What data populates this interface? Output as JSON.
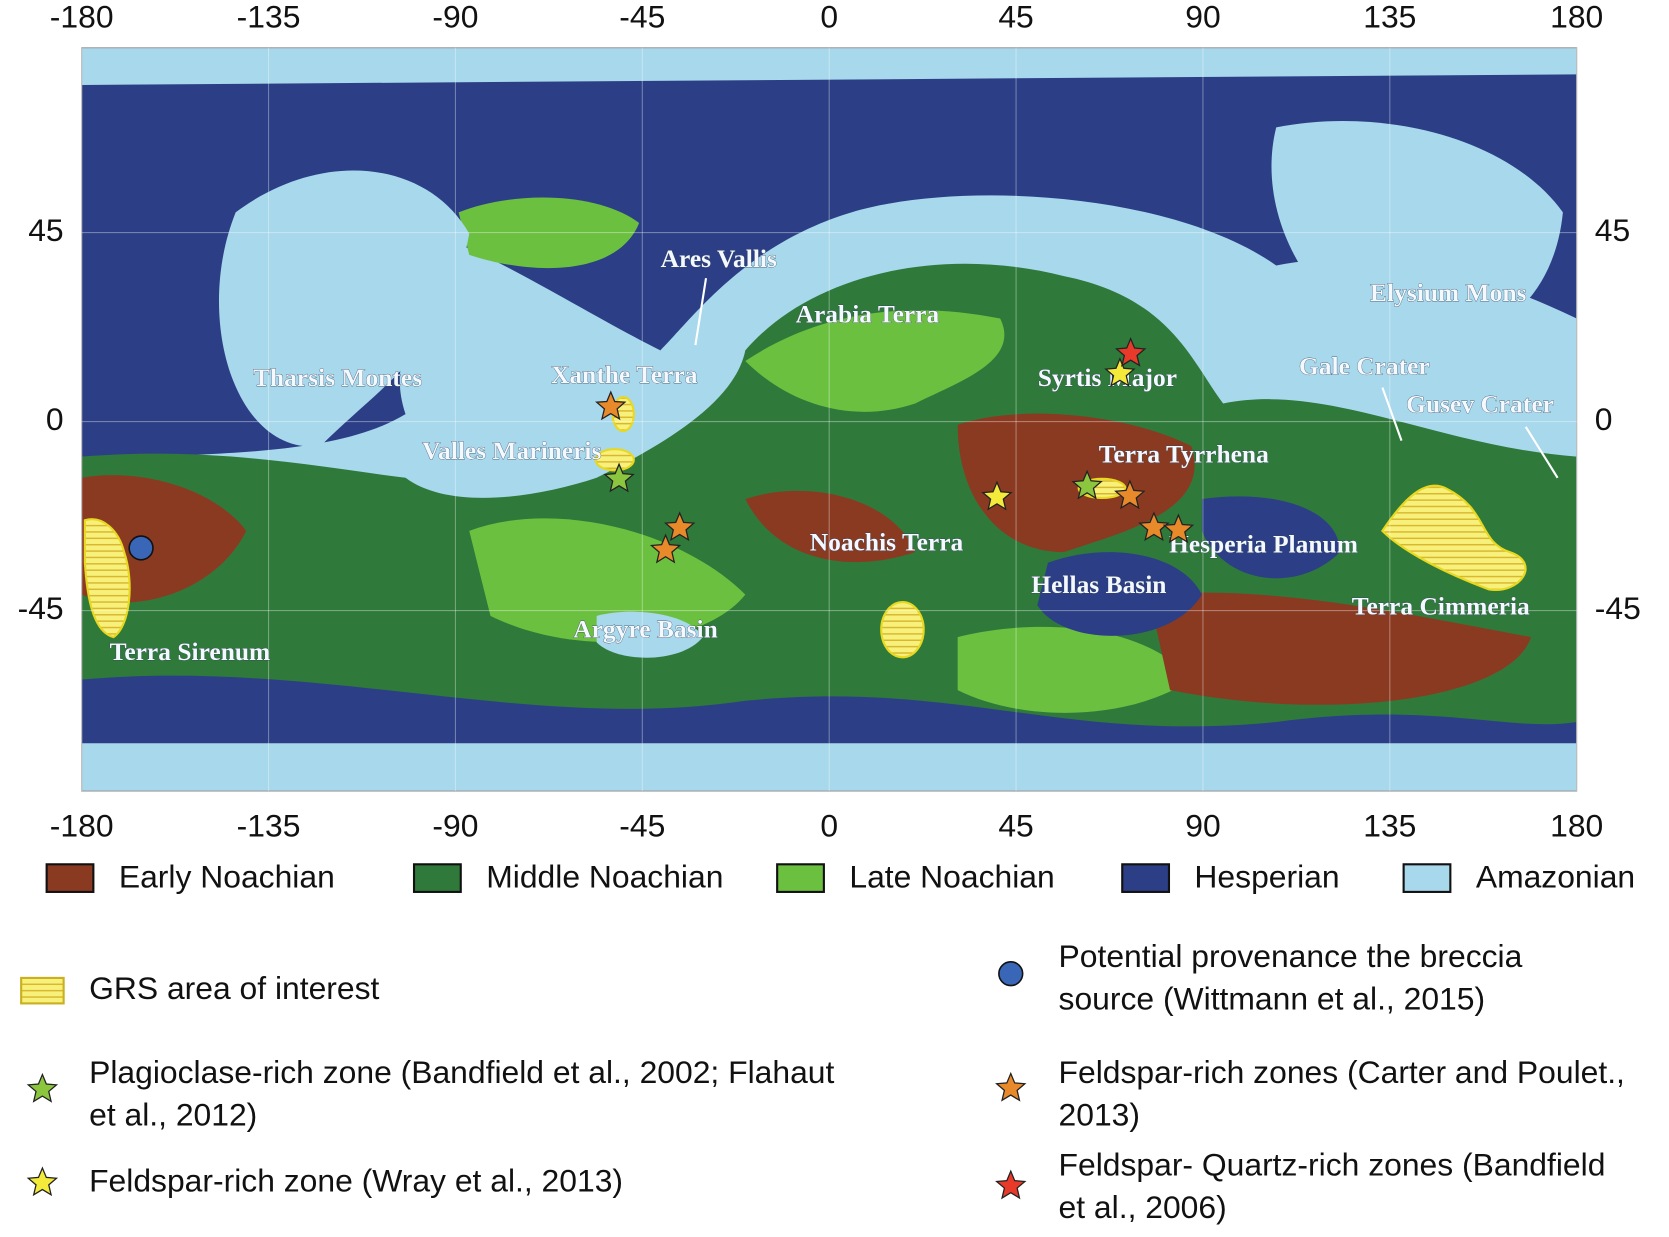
{
  "map": {
    "xlim": [
      -180,
      180
    ],
    "ylim": [
      -90,
      90
    ],
    "xticks": [
      -180,
      -135,
      -90,
      -45,
      0,
      45,
      90,
      135,
      180
    ],
    "yticks": [
      -45,
      0,
      45
    ],
    "regions": [
      "Tharsis Montes",
      "Xanthe Terra",
      "Ares Vallis",
      "Arabia Terra",
      "Valles Marineris",
      "Syrtis Major",
      "Elysium Mons",
      "Gale Crater",
      "Gusev Crater",
      "Terra Tyrrhena",
      "Noachis Terra",
      "Hesperia Planum",
      "Hellas Basin",
      "Terra Cimmeria",
      "Argyre Basin",
      "Terra Sirenum"
    ],
    "units": [
      {
        "name": "Early Noachian",
        "color": "#8b3a22"
      },
      {
        "name": "Middle Noachian",
        "color": "#2f7a3a"
      },
      {
        "name": "Late Noachian",
        "color": "#6cc040"
      },
      {
        "name": "Hesperian",
        "color": "#2c3f86"
      },
      {
        "name": "Amazonian",
        "color": "#a8d8ec"
      }
    ],
    "grs": {
      "lines": [
        "GRS area of interest"
      ],
      "color": "#f5ee5a"
    },
    "markers": [
      {
        "lines": [
          "Potential provenance the breccia",
          "source (Wittmann et al., 2015)"
        ],
        "shape": "circle",
        "color": "#3a66b8",
        "lon": [
          -165.7
        ],
        "lat": [
          -30.1
        ]
      },
      {
        "lines": [
          "Plagioclase-rich zone (Bandfield et al., 2002; Flahaut",
          "et al., 2012)"
        ],
        "shape": "star",
        "color": "#8cc63f",
        "lon": [
          -50.6,
          62.1
        ],
        "lat": [
          -13.7,
          -15.4
        ]
      },
      {
        "lines": [
          "Feldspar-rich zones (Carter and Poulet.,",
          "2013)"
        ],
        "shape": "star",
        "color": "#e8892a",
        "lon": [
          -52.6,
          -36,
          -39.4,
          72.4,
          78.2,
          84.1
        ],
        "lat": [
          3.5,
          -25.3,
          -30.6,
          -17.7,
          -25.3,
          -25.8
        ]
      },
      {
        "lines": [
          "Feldspar-rich zone (Wray et al., 2013)"
        ],
        "shape": "star",
        "color": "#f3ea3a",
        "lon": [
          40.4,
          70
        ],
        "lat": [
          -18,
          11.4
        ]
      },
      {
        "lines": [
          "Feldspar- Quartz-rich zones (Bandfield",
          "et al., 2006)"
        ],
        "shape": "star",
        "color": "#e83a2a",
        "lon": [
          72.6
        ],
        "lat": [
          16.2
        ]
      }
    ]
  }
}
